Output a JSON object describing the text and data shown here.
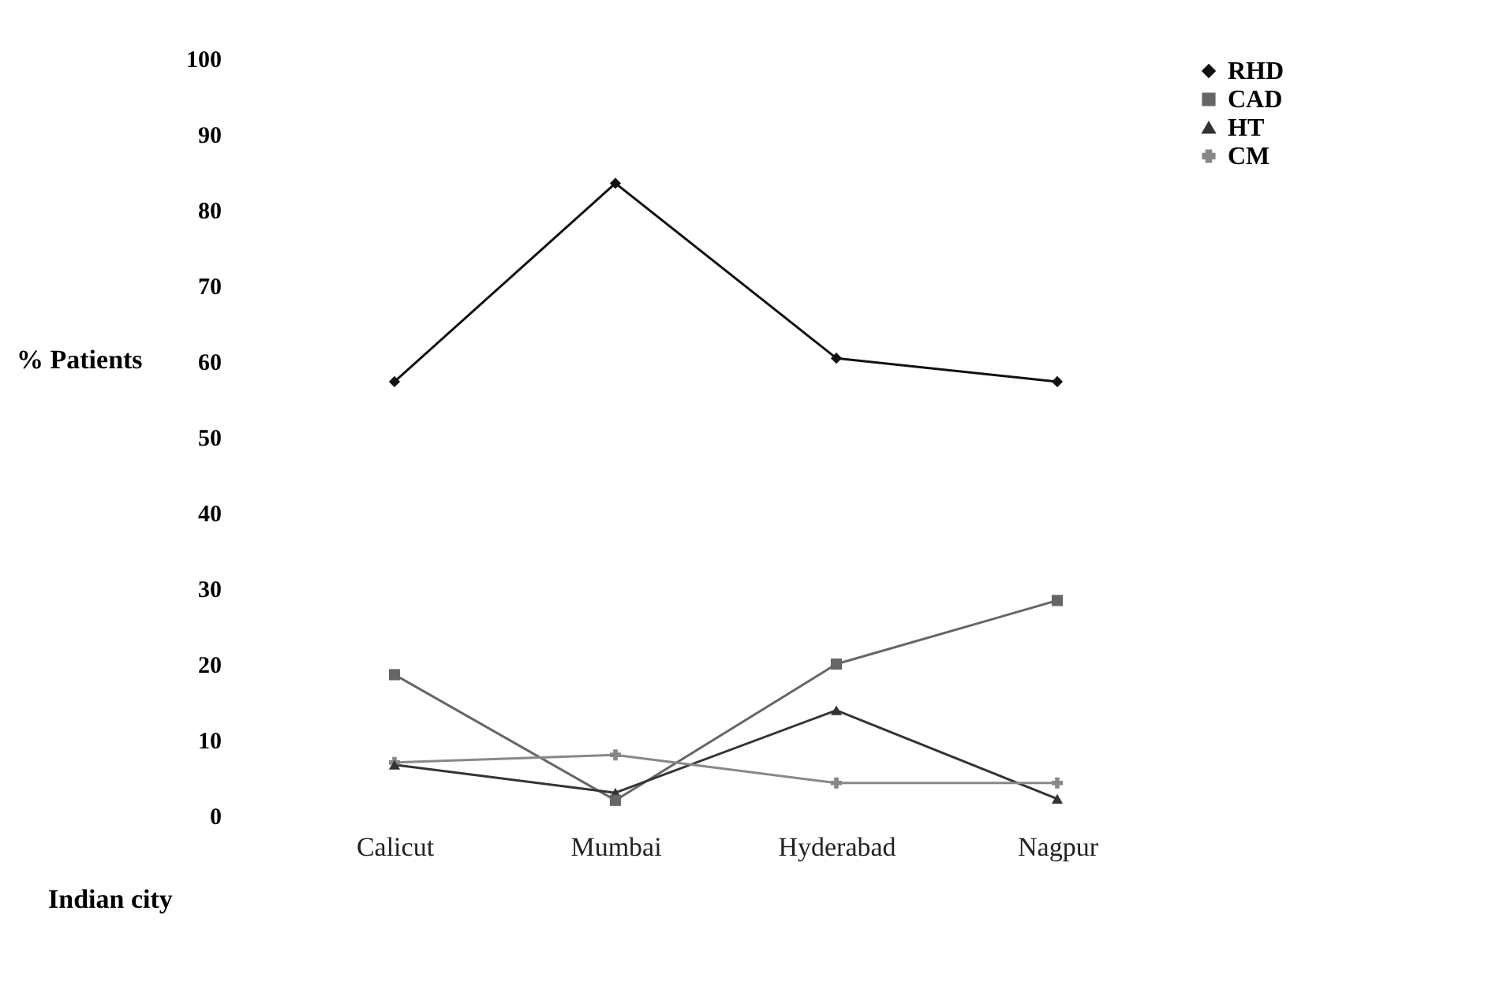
{
  "chart_data": {
    "type": "line",
    "xlabel": "Indian city",
    "ylabel": "% Patients",
    "categories": [
      "Calicut",
      "Mumbai",
      "Hyderabad",
      "Nagpur"
    ],
    "ylim": [
      0,
      100
    ],
    "yticks": [
      0,
      10,
      20,
      30,
      40,
      50,
      60,
      70,
      80,
      90,
      100
    ],
    "grid": false,
    "legend": "right",
    "series": [
      {
        "name": "RHD",
        "color": "#111111",
        "marker": "diamond",
        "values": [
          57.3,
          83.5,
          60.4,
          57.3
        ]
      },
      {
        "name": "CAD",
        "color": "#666666",
        "marker": "square",
        "values": [
          18.6,
          2,
          20,
          28.4
        ]
      },
      {
        "name": "HT",
        "color": "#333333",
        "marker": "triangle",
        "values": [
          6.7,
          3,
          13.9,
          2.2
        ]
      },
      {
        "name": "CM",
        "color": "#888888",
        "marker": "cross",
        "values": [
          7,
          8,
          4.3,
          4.3
        ]
      }
    ]
  }
}
